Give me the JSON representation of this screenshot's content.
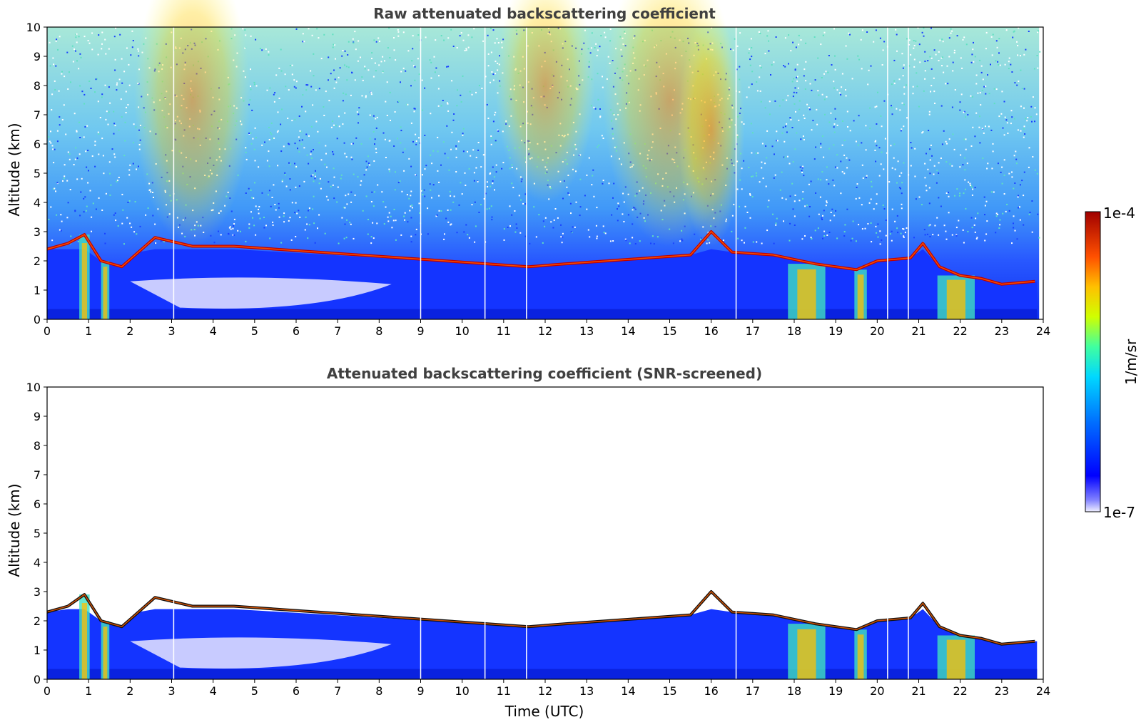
{
  "chart_data": [
    {
      "type": "heatmap",
      "title": "Raw attenuated backscattering coefficient",
      "xlabel": "",
      "ylabel": "Altitude (km)",
      "xlim": [
        0,
        24
      ],
      "ylim": [
        0,
        10
      ],
      "xticks": [
        "0",
        "1",
        "2",
        "3",
        "4",
        "5",
        "6",
        "7",
        "8",
        "9",
        "10",
        "11",
        "12",
        "13",
        "14",
        "15",
        "16",
        "17",
        "18",
        "19",
        "20",
        "21",
        "22",
        "23",
        "24"
      ],
      "yticks": [
        "0",
        "1",
        "2",
        "3",
        "4",
        "5",
        "6",
        "7",
        "8",
        "9",
        "10"
      ],
      "cloud_base_km": [
        [
          0,
          2.4
        ],
        [
          0.5,
          2.6
        ],
        [
          0.9,
          2.9
        ],
        [
          1.3,
          2.0
        ],
        [
          1.8,
          1.8
        ],
        [
          2.2,
          2.3
        ],
        [
          2.6,
          2.8
        ],
        [
          3.5,
          2.5
        ],
        [
          4.5,
          2.5
        ],
        [
          11.6,
          1.8
        ],
        [
          12.5,
          1.9
        ],
        [
          13.5,
          2.0
        ],
        [
          14.5,
          2.1
        ],
        [
          15.5,
          2.2
        ],
        [
          16.0,
          3.0
        ],
        [
          16.5,
          2.3
        ],
        [
          17.5,
          2.2
        ],
        [
          18.5,
          1.9
        ],
        [
          19.5,
          1.7
        ],
        [
          20.0,
          2.0
        ],
        [
          20.8,
          2.1
        ],
        [
          21.1,
          2.6
        ],
        [
          21.5,
          1.8
        ],
        [
          22.0,
          1.5
        ],
        [
          22.5,
          1.4
        ],
        [
          23.0,
          1.2
        ],
        [
          23.8,
          1.3
        ]
      ]
    },
    {
      "type": "heatmap",
      "title": "Attenuated backscattering coefficient (SNR-screened)",
      "xlabel": "Time (UTC)",
      "ylabel": "Altitude (km)",
      "xlim": [
        0,
        24
      ],
      "ylim": [
        0,
        10
      ],
      "xticks": [
        "0",
        "1",
        "2",
        "3",
        "4",
        "5",
        "6",
        "7",
        "8",
        "9",
        "10",
        "11",
        "12",
        "13",
        "14",
        "15",
        "16",
        "17",
        "18",
        "19",
        "20",
        "21",
        "22",
        "23",
        "24"
      ],
      "yticks": [
        "0",
        "1",
        "2",
        "3",
        "4",
        "5",
        "6",
        "7",
        "8",
        "9",
        "10"
      ],
      "cloud_base_km": [
        [
          0,
          2.3
        ],
        [
          0.5,
          2.5
        ],
        [
          0.9,
          2.9
        ],
        [
          1.3,
          2.0
        ],
        [
          1.8,
          1.8
        ],
        [
          2.2,
          2.3
        ],
        [
          2.6,
          2.8
        ],
        [
          3.5,
          2.5
        ],
        [
          4.5,
          2.5
        ],
        [
          11.6,
          1.8
        ],
        [
          12.5,
          1.9
        ],
        [
          13.5,
          2.0
        ],
        [
          14.5,
          2.1
        ],
        [
          15.5,
          2.2
        ],
        [
          16.0,
          3.0
        ],
        [
          16.5,
          2.3
        ],
        [
          17.5,
          2.2
        ],
        [
          18.5,
          1.9
        ],
        [
          19.5,
          1.7
        ],
        [
          20.0,
          2.0
        ],
        [
          20.8,
          2.1
        ],
        [
          21.1,
          2.6
        ],
        [
          21.5,
          1.8
        ],
        [
          22.0,
          1.5
        ],
        [
          22.5,
          1.4
        ],
        [
          23.0,
          1.2
        ],
        [
          23.8,
          1.3
        ]
      ]
    }
  ],
  "colorbar": {
    "label": "1/m/sr",
    "max_label": "1e-4",
    "min_label": "1e-7",
    "colors": [
      "#0000ff",
      "#0050ff",
      "#00a0ff",
      "#00e0e0",
      "#40ff80",
      "#c0ff00",
      "#ffe000",
      "#ff8000",
      "#ff2000",
      "#a00000"
    ]
  }
}
